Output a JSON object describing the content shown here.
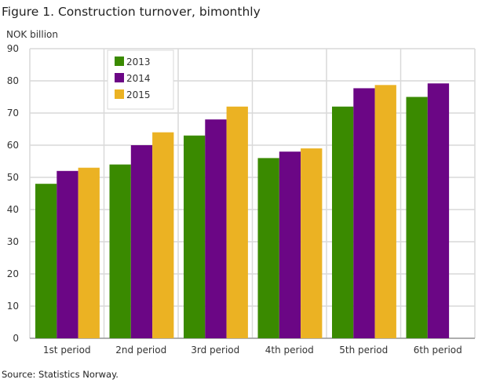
{
  "chart_data": {
    "type": "bar",
    "title": "Figure 1. Construction turnover, bimonthly",
    "ylabel": "NOK billion",
    "xlabel": "",
    "ylim": [
      0,
      90
    ],
    "yticks": [
      0,
      10,
      20,
      30,
      40,
      50,
      60,
      70,
      80,
      90
    ],
    "grid": true,
    "legend_position": "top-left",
    "categories": [
      "1st period",
      "2nd period",
      "3rd period",
      "4th period",
      "5th period",
      "6th period"
    ],
    "series": [
      {
        "name": "2013",
        "color": "#3a8a00",
        "values": [
          48,
          54,
          63,
          56,
          72,
          75
        ]
      },
      {
        "name": "2014",
        "color": "#6b0685",
        "values": [
          52,
          60,
          68,
          58,
          77.7,
          79.2
        ]
      },
      {
        "name": "2015",
        "color": "#ebb223",
        "values": [
          53,
          64,
          72,
          59,
          78.7,
          null
        ]
      }
    ],
    "source": "Source: Statistics Norway."
  }
}
